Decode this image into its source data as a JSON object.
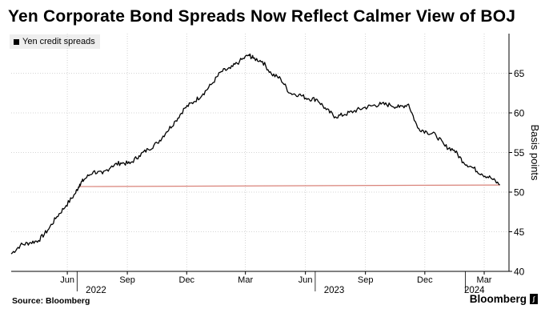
{
  "header": {
    "title": "Yen Corporate Bond Spreads Now Reflect Calmer View of BOJ",
    "source": "Source: Bloomberg",
    "brand": "Bloomberg"
  },
  "chart_data": {
    "type": "line",
    "title": "Yen Corporate Bond Spreads Now Reflect Calmer View of BOJ",
    "ylabel": "Basis points",
    "ylim": [
      40,
      70
    ],
    "yticks": [
      40,
      45,
      50,
      55,
      60,
      65
    ],
    "xlim": [
      "2022-03-07",
      "2024-04-08"
    ],
    "xticks": [
      {
        "date": "2022-06-01",
        "label": "Jun"
      },
      {
        "date": "2022-09-01",
        "label": "Sep"
      },
      {
        "date": "2022-12-01",
        "label": "Dec"
      },
      {
        "date": "2023-03-01",
        "label": "Mar"
      },
      {
        "date": "2023-06-01",
        "label": "Jun"
      },
      {
        "date": "2023-09-01",
        "label": "Sep"
      },
      {
        "date": "2023-12-01",
        "label": "Dec"
      },
      {
        "date": "2024-03-01",
        "label": "Mar"
      }
    ],
    "year_labels": [
      {
        "date": "2022-07-15",
        "label": "2022"
      },
      {
        "date": "2023-07-15",
        "label": "2023"
      },
      {
        "date": "2024-02-15",
        "label": "2024"
      }
    ],
    "year_dividers": [
      "2022-06-16",
      "2023-06-16",
      "2024-02-01"
    ],
    "grid": true,
    "legend": "top-left",
    "colors": {
      "series": "#000000",
      "reference": "#d9837a",
      "grid": "#c8c8c8"
    },
    "series": [
      {
        "name": "Yen credit spreads",
        "x": [
          "2022-03-07",
          "2022-03-21",
          "2022-04-04",
          "2022-04-18",
          "2022-05-02",
          "2022-05-16",
          "2022-05-30",
          "2022-06-13",
          "2022-06-20",
          "2022-06-27",
          "2022-07-11",
          "2022-07-25",
          "2022-08-08",
          "2022-08-22",
          "2022-09-05",
          "2022-09-19",
          "2022-10-03",
          "2022-10-17",
          "2022-10-31",
          "2022-11-14",
          "2022-11-28",
          "2022-12-12",
          "2022-12-26",
          "2023-01-09",
          "2023-01-23",
          "2023-02-06",
          "2023-02-20",
          "2023-03-06",
          "2023-03-13",
          "2023-03-27",
          "2023-04-10",
          "2023-04-24",
          "2023-05-08",
          "2023-05-22",
          "2023-06-05",
          "2023-06-19",
          "2023-07-03",
          "2023-07-17",
          "2023-07-31",
          "2023-08-14",
          "2023-08-28",
          "2023-09-11",
          "2023-09-25",
          "2023-10-09",
          "2023-10-23",
          "2023-11-06",
          "2023-11-20",
          "2023-12-04",
          "2023-12-18",
          "2024-01-01",
          "2024-01-15",
          "2024-01-29",
          "2024-02-12",
          "2024-02-26",
          "2024-03-11",
          "2024-03-25"
        ],
        "values": [
          42.2,
          43.3,
          43.6,
          43.9,
          45.2,
          46.9,
          48.3,
          49.8,
          51.0,
          51.6,
          52.6,
          52.3,
          53.3,
          53.7,
          53.6,
          54.6,
          55.4,
          56.2,
          57.6,
          59.0,
          60.6,
          61.4,
          62.4,
          63.7,
          65.2,
          65.6,
          66.5,
          67.3,
          66.9,
          66.5,
          64.9,
          64.3,
          62.5,
          62.3,
          61.8,
          61.7,
          60.4,
          59.5,
          59.8,
          60.2,
          60.6,
          60.9,
          61.1,
          61.0,
          60.7,
          61.1,
          58.1,
          57.6,
          57.2,
          55.8,
          55.3,
          53.8,
          53.1,
          52.3,
          51.8,
          50.9
        ]
      },
      {
        "name": "",
        "x": [
          "2022-06-20",
          "2024-03-25"
        ],
        "values": [
          50.7,
          50.9
        ]
      }
    ]
  }
}
